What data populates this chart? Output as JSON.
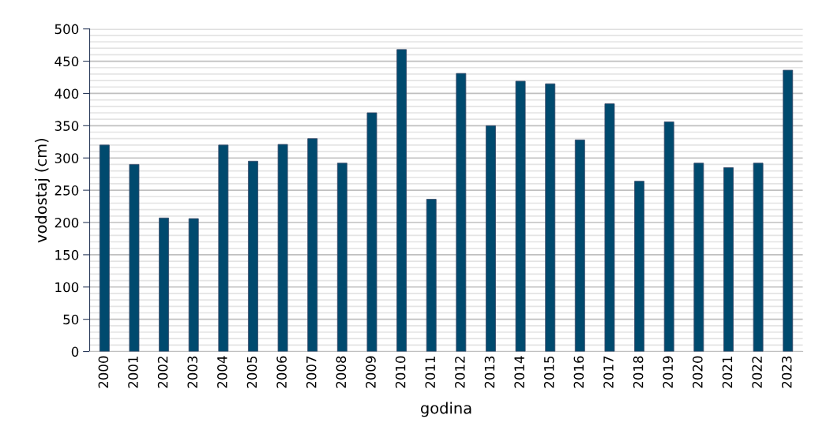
{
  "chart_data": {
    "type": "bar",
    "xlabel": "godina",
    "ylabel": "vodostaj (cm)",
    "categories": [
      "2000",
      "2001",
      "2002",
      "2003",
      "2004",
      "2005",
      "2006",
      "2007",
      "2008",
      "2009",
      "2010",
      "2011",
      "2012",
      "2013",
      "2014",
      "2015",
      "2016",
      "2017",
      "2018",
      "2019",
      "2020",
      "2021",
      "2022",
      "2023"
    ],
    "values": [
      320,
      290,
      207,
      206,
      320,
      295,
      321,
      330,
      292,
      370,
      468,
      236,
      431,
      350,
      419,
      415,
      328,
      384,
      264,
      356,
      292,
      285,
      292,
      436
    ],
    "color": "#004a6e",
    "ylim": [
      0,
      500
    ],
    "yticks": [
      0,
      50,
      100,
      150,
      200,
      250,
      300,
      350,
      400,
      450,
      500
    ],
    "grid": "y"
  }
}
